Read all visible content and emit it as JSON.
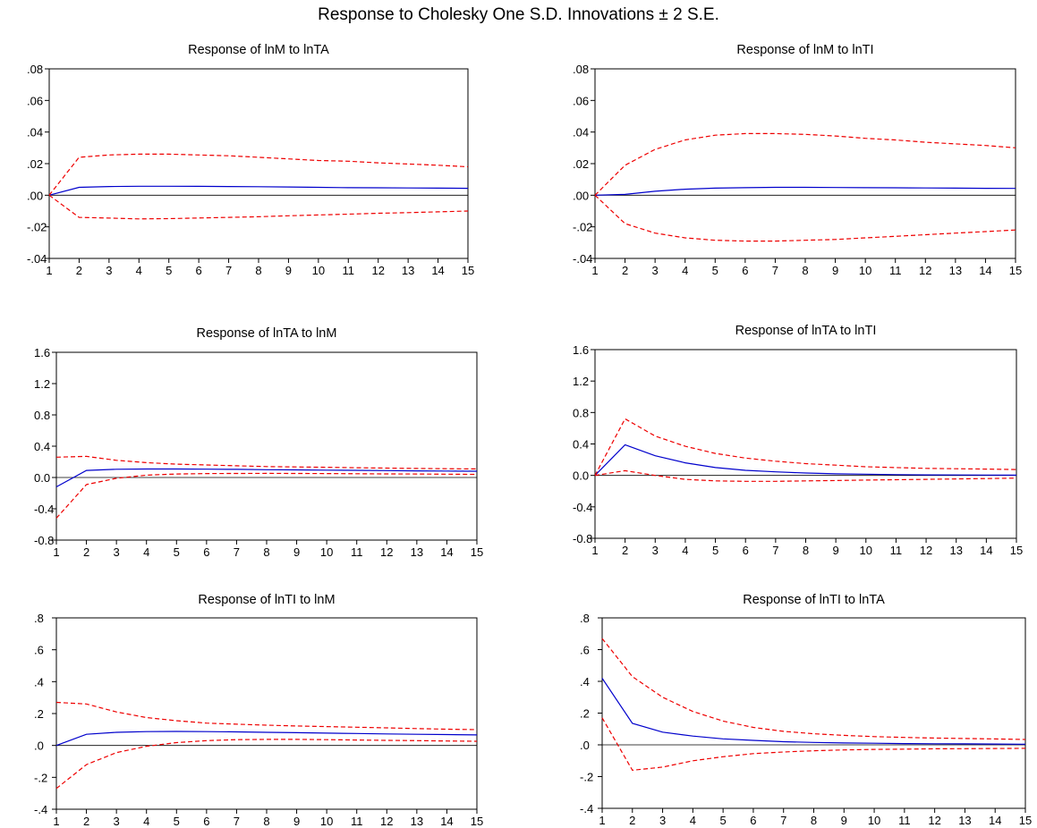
{
  "title": "Response to Cholesky One S.D. Innovations ± 2 S.E.",
  "colors": {
    "response": "#0000cc",
    "band": "#ee0000",
    "zero": "#000000",
    "frame": "#000000"
  },
  "chart_data": [
    {
      "type": "line",
      "title": "Response of lnM to lnTA",
      "x": [
        1,
        2,
        3,
        4,
        5,
        6,
        7,
        8,
        9,
        10,
        11,
        12,
        13,
        14,
        15
      ],
      "ylim": [
        -0.04,
        0.08
      ],
      "yticks": [
        ".08",
        ".06",
        ".04",
        ".02",
        ".00",
        "-.02",
        "-.04"
      ],
      "ytick_values": [
        0.08,
        0.06,
        0.04,
        0.02,
        0.0,
        -0.02,
        -0.04
      ],
      "grid": false,
      "series": [
        {
          "role": "response",
          "values": [
            0.0,
            0.005,
            0.0055,
            0.0057,
            0.0057,
            0.0056,
            0.0055,
            0.0054,
            0.0052,
            0.005,
            0.0048,
            0.0047,
            0.0046,
            0.0045,
            0.0044
          ]
        },
        {
          "role": "upper",
          "values": [
            0.0,
            0.024,
            0.0255,
            0.026,
            0.026,
            0.0255,
            0.025,
            0.024,
            0.023,
            0.022,
            0.0215,
            0.0205,
            0.0198,
            0.019,
            0.018
          ]
        },
        {
          "role": "lower",
          "values": [
            0.0,
            -0.014,
            -0.0145,
            -0.015,
            -0.0148,
            -0.0144,
            -0.014,
            -0.0136,
            -0.013,
            -0.0125,
            -0.012,
            -0.0114,
            -0.011,
            -0.0105,
            -0.01
          ]
        }
      ]
    },
    {
      "type": "line",
      "title": "Response of lnM to lnTI",
      "x": [
        1,
        2,
        3,
        4,
        5,
        6,
        7,
        8,
        9,
        10,
        11,
        12,
        13,
        14,
        15
      ],
      "ylim": [
        -0.04,
        0.08
      ],
      "yticks": [
        ".08",
        ".06",
        ".04",
        ".02",
        ".00",
        "-.02",
        "-.04"
      ],
      "ytick_values": [
        0.08,
        0.06,
        0.04,
        0.02,
        0.0,
        -0.02,
        -0.04
      ],
      "grid": false,
      "series": [
        {
          "role": "response",
          "values": [
            0.0,
            0.0005,
            0.0025,
            0.0038,
            0.0045,
            0.0048,
            0.005,
            0.005,
            0.0049,
            0.0048,
            0.0047,
            0.0046,
            0.0045,
            0.0044,
            0.0043
          ]
        },
        {
          "role": "upper",
          "values": [
            0.0,
            0.019,
            0.029,
            0.035,
            0.038,
            0.039,
            0.039,
            0.0385,
            0.0375,
            0.036,
            0.035,
            0.0335,
            0.0325,
            0.0315,
            0.03
          ]
        },
        {
          "role": "lower",
          "values": [
            0.0,
            -0.018,
            -0.024,
            -0.027,
            -0.0285,
            -0.029,
            -0.029,
            -0.0285,
            -0.028,
            -0.027,
            -0.026,
            -0.025,
            -0.024,
            -0.023,
            -0.022
          ]
        }
      ]
    },
    {
      "type": "line",
      "title": "Response of lnTA to lnM",
      "x": [
        1,
        2,
        3,
        4,
        5,
        6,
        7,
        8,
        9,
        10,
        11,
        12,
        13,
        14,
        15
      ],
      "ylim": [
        -0.8,
        1.6
      ],
      "yticks": [
        "1.6",
        "1.2",
        "0.8",
        "0.4",
        "0.0",
        "-0.4",
        "-0.8"
      ],
      "ytick_values": [
        1.6,
        1.2,
        0.8,
        0.4,
        0.0,
        -0.4,
        -0.8
      ],
      "grid": false,
      "series": [
        {
          "role": "response",
          "values": [
            -0.12,
            0.09,
            0.105,
            0.108,
            0.108,
            0.106,
            0.104,
            0.1,
            0.097,
            0.094,
            0.091,
            0.088,
            0.085,
            0.082,
            0.08
          ]
        },
        {
          "role": "upper",
          "values": [
            0.26,
            0.27,
            0.22,
            0.19,
            0.17,
            0.16,
            0.15,
            0.14,
            0.135,
            0.13,
            0.125,
            0.12,
            0.115,
            0.112,
            0.11
          ]
        },
        {
          "role": "lower",
          "values": [
            -0.52,
            -0.09,
            -0.01,
            0.03,
            0.045,
            0.05,
            0.052,
            0.053,
            0.052,
            0.05,
            0.048,
            0.046,
            0.044,
            0.042,
            0.04
          ]
        }
      ]
    },
    {
      "type": "line",
      "title": "Response of lnTA to lnTI",
      "x": [
        1,
        2,
        3,
        4,
        5,
        6,
        7,
        8,
        9,
        10,
        11,
        12,
        13,
        14,
        15
      ],
      "ylim": [
        -0.8,
        1.6
      ],
      "yticks": [
        "1.6",
        "1.2",
        "0.8",
        "0.4",
        "0.0",
        "-0.4",
        "-0.8"
      ],
      "ytick_values": [
        1.6,
        1.2,
        0.8,
        0.4,
        0.0,
        -0.4,
        -0.8
      ],
      "grid": false,
      "series": [
        {
          "role": "response",
          "values": [
            0.0,
            0.39,
            0.25,
            0.16,
            0.1,
            0.065,
            0.045,
            0.03,
            0.02,
            0.015,
            0.01,
            0.007,
            0.005,
            0.004,
            0.003
          ]
        },
        {
          "role": "upper",
          "values": [
            0.0,
            0.72,
            0.5,
            0.37,
            0.28,
            0.22,
            0.18,
            0.15,
            0.13,
            0.11,
            0.1,
            0.09,
            0.085,
            0.08,
            0.075
          ]
        },
        {
          "role": "lower",
          "values": [
            0.0,
            0.06,
            0.0,
            -0.05,
            -0.07,
            -0.075,
            -0.075,
            -0.07,
            -0.065,
            -0.06,
            -0.055,
            -0.05,
            -0.045,
            -0.04,
            -0.035
          ]
        }
      ]
    },
    {
      "type": "line",
      "title": "Response of lnTI to lnM",
      "x": [
        1,
        2,
        3,
        4,
        5,
        6,
        7,
        8,
        9,
        10,
        11,
        12,
        13,
        14,
        15
      ],
      "ylim": [
        -0.4,
        0.8
      ],
      "yticks": [
        ".8",
        ".6",
        ".4",
        ".2",
        ".0",
        "-.2",
        "-.4"
      ],
      "ytick_values": [
        0.8,
        0.6,
        0.4,
        0.2,
        0.0,
        -0.2,
        -0.4
      ],
      "grid": false,
      "series": [
        {
          "role": "response",
          "values": [
            0.0,
            0.07,
            0.082,
            0.087,
            0.088,
            0.087,
            0.085,
            0.082,
            0.08,
            0.077,
            0.075,
            0.072,
            0.07,
            0.068,
            0.066
          ]
        },
        {
          "role": "upper",
          "values": [
            0.27,
            0.26,
            0.21,
            0.175,
            0.155,
            0.14,
            0.133,
            0.127,
            0.122,
            0.118,
            0.114,
            0.11,
            0.106,
            0.102,
            0.099
          ]
        },
        {
          "role": "lower",
          "values": [
            -0.27,
            -0.12,
            -0.045,
            -0.005,
            0.018,
            0.03,
            0.036,
            0.038,
            0.038,
            0.036,
            0.034,
            0.032,
            0.03,
            0.028,
            0.026
          ]
        }
      ]
    },
    {
      "type": "line",
      "title": "Response of lnTI to lnTA",
      "x": [
        1,
        2,
        3,
        4,
        5,
        6,
        7,
        8,
        9,
        10,
        11,
        12,
        13,
        14,
        15
      ],
      "ylim": [
        -0.4,
        0.8
      ],
      "yticks": [
        ".8",
        ".6",
        ".4",
        ".2",
        ".0",
        "-.2",
        "-.4"
      ],
      "ytick_values": [
        0.8,
        0.6,
        0.4,
        0.2,
        0.0,
        -0.2,
        -0.4
      ],
      "grid": false,
      "series": [
        {
          "role": "response",
          "values": [
            0.42,
            0.135,
            0.08,
            0.055,
            0.038,
            0.028,
            0.02,
            0.015,
            0.012,
            0.01,
            0.008,
            0.007,
            0.006,
            0.005,
            0.004
          ]
        },
        {
          "role": "upper",
          "values": [
            0.67,
            0.43,
            0.3,
            0.21,
            0.15,
            0.11,
            0.085,
            0.07,
            0.06,
            0.052,
            0.047,
            0.043,
            0.04,
            0.037,
            0.034
          ]
        },
        {
          "role": "lower",
          "values": [
            0.17,
            -0.16,
            -0.14,
            -0.1,
            -0.075,
            -0.055,
            -0.045,
            -0.037,
            -0.032,
            -0.029,
            -0.027,
            -0.025,
            -0.024,
            -0.023,
            -0.022
          ]
        }
      ]
    }
  ]
}
